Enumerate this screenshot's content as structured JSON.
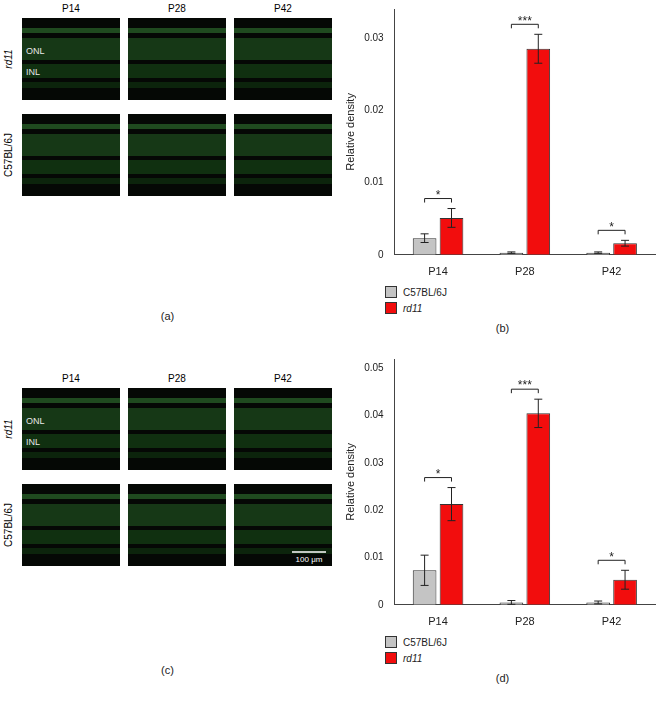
{
  "images": [
    {
      "panel": "(a)",
      "columns": [
        "P14",
        "P28",
        "P42"
      ],
      "rows": [
        "rd11",
        "C57BL/6J"
      ],
      "layer_labels": [
        "ONL",
        "INL"
      ]
    },
    {
      "panel": "(c)",
      "columns": [
        "P14",
        "P28",
        "P42"
      ],
      "rows": [
        "rd11",
        "C57BL/6J"
      ],
      "layer_labels": [
        "ONL",
        "INL"
      ],
      "scale_bar": "100 μm"
    }
  ],
  "chart_data": [
    {
      "type": "bar",
      "panel": "(b)",
      "y_label": "Relative density",
      "categories": [
        "P14",
        "P28",
        "P42"
      ],
      "series": [
        {
          "name": "C57BL/6J",
          "color": "#c4c4c4",
          "values": [
            0.0023,
            0.0003,
            0.0003
          ],
          "errors": [
            0.0006,
            0.0001,
            0.0001
          ]
        },
        {
          "name": "rd11",
          "color": "#f20d0d",
          "values": [
            0.0051,
            0.0285,
            0.0016
          ],
          "errors": [
            0.0013,
            0.002,
            0.0004
          ]
        }
      ],
      "significance": [
        "*",
        "***",
        "*"
      ],
      "ylim": [
        0,
        0.034
      ],
      "yticks": [
        0,
        0.01,
        0.02,
        0.03
      ],
      "grid": false,
      "legend": "lower left"
    },
    {
      "type": "bar",
      "panel": "(d)",
      "y_label": "Relative density",
      "categories": [
        "P14",
        "P28",
        "P42"
      ],
      "series": [
        {
          "name": "C57BL/6J",
          "color": "#c4c4c4",
          "values": [
            0.0073,
            0.0005,
            0.0005
          ],
          "errors": [
            0.0032,
            0.0004,
            0.0003
          ]
        },
        {
          "name": "rd11",
          "color": "#f20d0d",
          "values": [
            0.0213,
            0.0405,
            0.0053
          ],
          "errors": [
            0.0035,
            0.003,
            0.002
          ]
        }
      ],
      "significance": [
        "*",
        "***",
        "*"
      ],
      "ylim": [
        0,
        0.052
      ],
      "yticks": [
        0,
        0.01,
        0.02,
        0.03,
        0.04,
        0.05
      ],
      "grid": false,
      "legend": "lower left"
    }
  ]
}
